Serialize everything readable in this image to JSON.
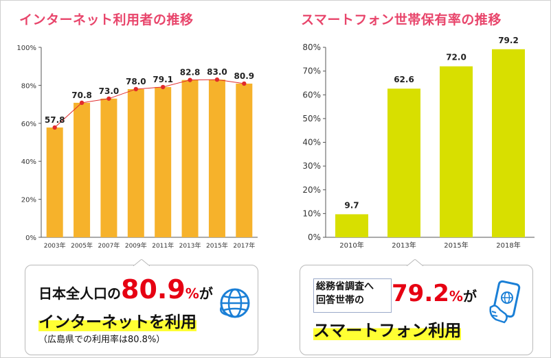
{
  "titles": {
    "left": "インターネット利用者の推移",
    "right": "スマートフォン世帯保有率の推移"
  },
  "colors": {
    "title": "#e8456b",
    "internet_bar": "#f6b22b",
    "smartphone_bar": "#d8df00",
    "line": "#e12b2b",
    "highlight": "#ffff33",
    "accent_red": "#e60012",
    "icon_blue": "#1a7fd6"
  },
  "chart_data": [
    {
      "type": "bar",
      "title": "インターネット利用者の推移",
      "categories": [
        "2003年",
        "2005年",
        "2007年",
        "2009年",
        "2011年",
        "2013年",
        "2015年",
        "2017年"
      ],
      "values": [
        57.8,
        70.8,
        73.0,
        78.0,
        79.1,
        82.8,
        83.0,
        80.9
      ],
      "value_labels": [
        "57.8",
        "70.8",
        "73.0",
        "78.0",
        "79.1",
        "82.8",
        "83.0",
        "80.9"
      ],
      "overlay": "line",
      "yticks": [
        "0%",
        "20%",
        "40%",
        "60%",
        "80%",
        "100%"
      ],
      "ylim": [
        0,
        100
      ],
      "grid": false,
      "legend": "none"
    },
    {
      "type": "bar",
      "title": "スマートフォン世帯保有率の推移",
      "categories": [
        "2010年",
        "2013年",
        "2015年",
        "2018年"
      ],
      "values": [
        9.7,
        62.6,
        72.0,
        79.2
      ],
      "value_labels": [
        "9.7",
        "62.6",
        "72.0",
        "79.2"
      ],
      "yticks": [
        "0%",
        "10%",
        "20%",
        "30%",
        "40%",
        "50%",
        "60%",
        "70%",
        "80%"
      ],
      "ylim": [
        0,
        80
      ],
      "grid": false,
      "legend": "none"
    }
  ],
  "callout_left": {
    "pre": "日本全人口の",
    "value": "80.9",
    "percent": "%",
    "post": "が",
    "headline": "インターネットを利用",
    "note": "（広島県での利用率は80.8%）",
    "icon": "globe-icon"
  },
  "callout_right": {
    "line1": "総務省調査へ",
    "line2": "回答世帯の",
    "value": "79.2",
    "percent": "%",
    "post": "が",
    "headline": "スマートフォン利用",
    "icon": "smartphone-globe-icon"
  }
}
